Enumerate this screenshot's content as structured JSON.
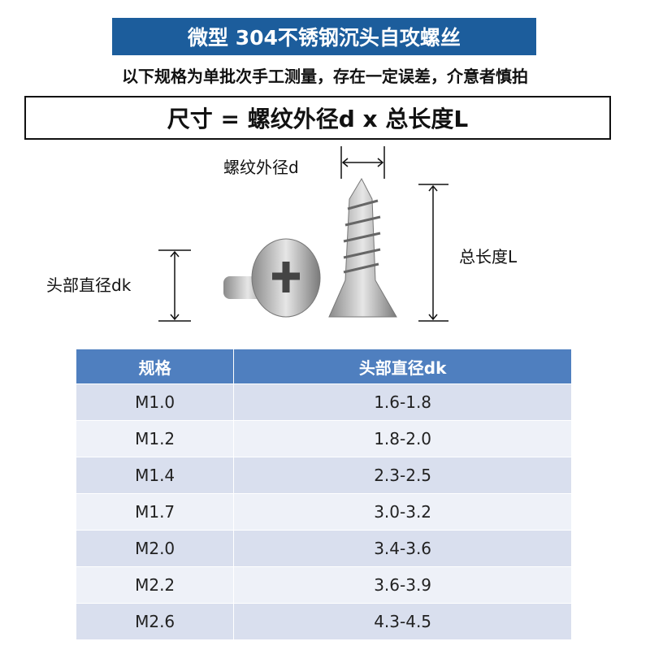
{
  "header": {
    "title": "微型 304不锈钢沉头自攻螺丝",
    "subtitle": "以下规格为单批次手工测量，存在一定误差，介意者慎拍"
  },
  "formula": "尺寸 = 螺纹外径d x 总长度L",
  "labels": {
    "thread_diameter": "螺纹外径d",
    "head_diameter": "头部直径dk",
    "total_length": "总长度L"
  },
  "table": {
    "columns": [
      "规格",
      "头部直径dk"
    ],
    "rows": [
      [
        "M1.0",
        "1.6-1.8"
      ],
      [
        "M1.2",
        "1.8-2.0"
      ],
      [
        "M1.4",
        "2.3-2.5"
      ],
      [
        "M1.7",
        "3.0-3.2"
      ],
      [
        "M2.0",
        "3.4-3.6"
      ],
      [
        "M2.2",
        "3.6-3.9"
      ],
      [
        "M2.6",
        "4.3-4.5"
      ]
    ]
  }
}
